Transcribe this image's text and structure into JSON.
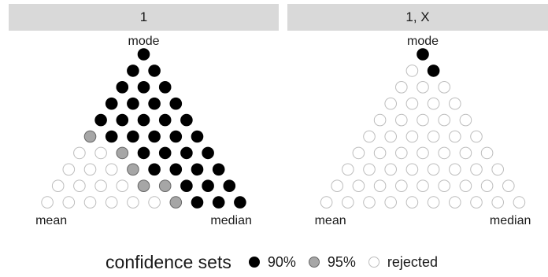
{
  "chart_data": [
    {
      "type": "scatter",
      "panel_title": "1",
      "vertex_labels": {
        "top": "mode",
        "left": "mean",
        "right": "median"
      },
      "rows": 10,
      "status_rows": [
        "a",
        "aa",
        "aaa",
        "aaaa",
        "aaaaa",
        "baaaaa",
        "rrbaaaa",
        "rrrbaaaa",
        "rrrrbbaaa",
        "rrrrrrbaaa"
      ]
    },
    {
      "type": "scatter",
      "panel_title": "1, X",
      "vertex_labels": {
        "top": "mode",
        "left": "mean",
        "right": "median"
      },
      "rows": 10,
      "status_rows": [
        "a",
        "ra",
        "rrr",
        "rrrr",
        "rrrrr",
        "rrrrrr",
        "rrrrrrr",
        "rrrrrrrr",
        "rrrrrrrrr",
        "rrrrrrrrrr"
      ]
    }
  ],
  "legend": {
    "title": "confidence sets",
    "items": [
      {
        "key": "a",
        "label": "90%",
        "color": "#000000"
      },
      {
        "key": "b",
        "label": "95%",
        "color": "#a6a6a6"
      },
      {
        "key": "r",
        "label": "rejected",
        "color": "#ffffff"
      }
    ]
  }
}
